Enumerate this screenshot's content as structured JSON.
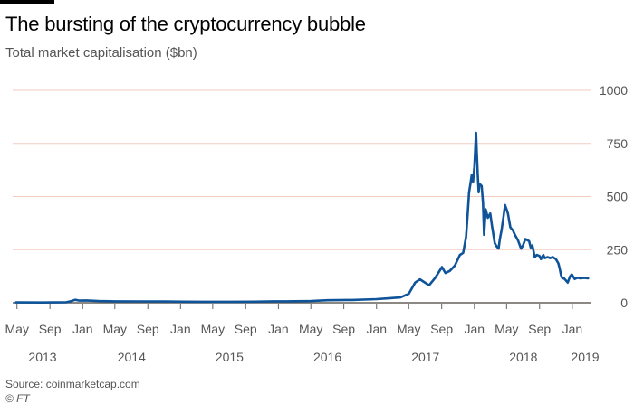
{
  "title": "The bursting of the cryptocurrency bubble",
  "subtitle": "Total market capitalisation ($bn)",
  "source": "Source: coinmarketcap.com",
  "copyright": "© FT",
  "colors": {
    "line": "#0f5499",
    "grid": "#f2cbbf",
    "zero": "#66605c",
    "text": "#555555"
  },
  "chart_data": {
    "type": "line",
    "title": "The bursting of the cryptocurrency bubble",
    "ylabel": "Total market capitalisation ($bn)",
    "ylim": [
      0,
      1000
    ],
    "y_ticks": [
      0,
      250,
      500,
      750,
      1000
    ],
    "y_axis_side": "right",
    "grid": true,
    "x_tick_labels": [
      "May",
      "Sep",
      "Jan",
      "May",
      "Sep",
      "Jan",
      "May",
      "Sep",
      "Jan",
      "May",
      "Sep",
      "Jan",
      "May",
      "Sep",
      "Jan",
      "May",
      "Sep",
      "Jan"
    ],
    "x_tick_dates": [
      "2013-05",
      "2013-09",
      "2014-01",
      "2014-05",
      "2014-09",
      "2015-01",
      "2015-05",
      "2015-09",
      "2016-01",
      "2016-05",
      "2016-09",
      "2017-01",
      "2017-05",
      "2017-09",
      "2018-01",
      "2018-05",
      "2018-09",
      "2019-01"
    ],
    "year_labels": [
      "2013",
      "2014",
      "2015",
      "2016",
      "2017",
      "2018",
      "2019"
    ],
    "series": [
      {
        "x": [
          "2013-04-28",
          "2013-08-01",
          "2013-11-01",
          "2013-11-20",
          "2013-12-04",
          "2013-12-20",
          "2014-01-15",
          "2014-03-01",
          "2014-05-01",
          "2014-08-01",
          "2014-11-01",
          "2015-01-15",
          "2015-04-01",
          "2015-07-01",
          "2015-10-01",
          "2015-12-15",
          "2016-02-01",
          "2016-05-01",
          "2016-07-01",
          "2016-10-01",
          "2016-12-31",
          "2017-02-15",
          "2017-03-31",
          "2017-05-01",
          "2017-05-25",
          "2017-06-12",
          "2017-07-16",
          "2017-08-08",
          "2017-09-02",
          "2017-09-15",
          "2017-10-01",
          "2017-10-20",
          "2017-11-08",
          "2017-11-20",
          "2017-12-01",
          "2017-12-08",
          "2017-12-12",
          "2017-12-17",
          "2017-12-22",
          "2017-12-27",
          "2018-01-01",
          "2018-01-07",
          "2018-01-10",
          "2018-01-13",
          "2018-01-17",
          "2018-01-20",
          "2018-01-28",
          "2018-02-02",
          "2018-02-06",
          "2018-02-12",
          "2018-02-20",
          "2018-03-01",
          "2018-03-08",
          "2018-03-18",
          "2018-03-25",
          "2018-04-01",
          "2018-04-06",
          "2018-04-12",
          "2018-04-20",
          "2018-04-25",
          "2018-05-01",
          "2018-05-06",
          "2018-05-15",
          "2018-05-25",
          "2018-06-01",
          "2018-06-12",
          "2018-06-24",
          "2018-07-01",
          "2018-07-10",
          "2018-07-24",
          "2018-07-30",
          "2018-08-05",
          "2018-08-14",
          "2018-08-22",
          "2018-09-01",
          "2018-09-06",
          "2018-09-15",
          "2018-09-20",
          "2018-10-01",
          "2018-10-11",
          "2018-10-20",
          "2018-11-01",
          "2018-11-10",
          "2018-11-15",
          "2018-11-20",
          "2018-11-25",
          "2018-12-01",
          "2018-12-10",
          "2018-12-15",
          "2018-12-24",
          "2018-12-30",
          "2019-01-10",
          "2019-01-20",
          "2019-02-01",
          "2019-02-15",
          "2019-03-01"
        ],
        "y": [
          1.5,
          1.3,
          2.5,
          8,
          14,
          10,
          11,
          8,
          7,
          6.5,
          6,
          5,
          4.5,
          4.5,
          5,
          7,
          7,
          8,
          12,
          13,
          17,
          21,
          25,
          42,
          95,
          110,
          82,
          118,
          168,
          140,
          150,
          175,
          225,
          235,
          310,
          440,
          520,
          560,
          600,
          570,
          640,
          800,
          700,
          610,
          520,
          560,
          550,
          470,
          320,
          440,
          400,
          420,
          360,
          280,
          265,
          255,
          300,
          340,
          410,
          460,
          440,
          420,
          355,
          340,
          320,
          295,
          255,
          270,
          300,
          290,
          260,
          270,
          215,
          225,
          220,
          205,
          225,
          210,
          215,
          210,
          215,
          205,
          185,
          160,
          130,
          115,
          115,
          102,
          95,
          125,
          133,
          112,
          118,
          115,
          117,
          115
        ]
      }
    ]
  }
}
